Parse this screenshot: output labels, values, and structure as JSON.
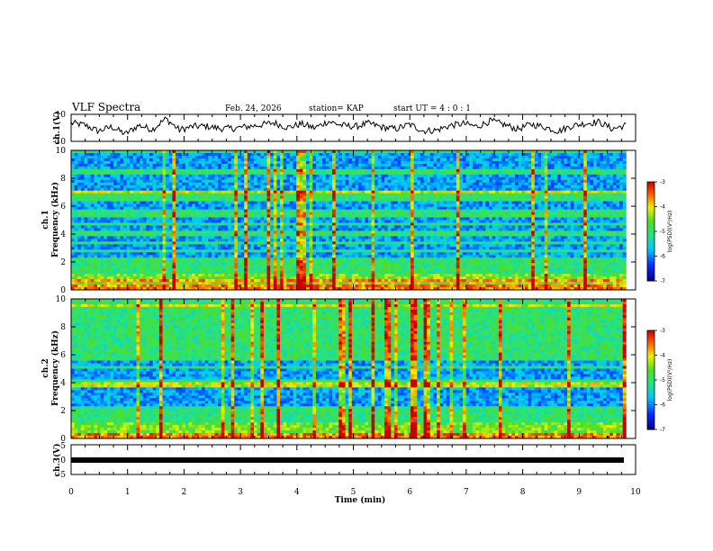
{
  "header": {
    "title": "VLF Spectra",
    "date": "Feb. 24, 2026",
    "station": "station= KAP",
    "start_ut": "start  UT =   4 : 0  : 1"
  },
  "chart_data": [
    {
      "type": "line",
      "panel": "ch1-waveform",
      "ylabel": "ch.1(V)",
      "ylim": [
        -10,
        10
      ],
      "yticks": [
        "10",
        "-10"
      ],
      "xlim": [
        0,
        10
      ],
      "x_end": 9.83,
      "series": [
        {
          "name": "ch.1 voltage",
          "values": [
            3.5,
            2.1,
            -2.4,
            0.8,
            -4.6,
            1.9,
            -1.2,
            6.8,
            -1.5,
            1.0,
            1.2,
            -0.5,
            -0.4,
            0.9,
            2.2,
            3.8,
            0.2,
            2.9,
            -0.1,
            4.8,
            1.8,
            1.0,
            3.3,
            0.4,
            -0.8,
            2.6,
            -2.2,
            -1.8,
            1.7,
            3.1,
            0.9,
            5.2,
            2.4,
            -1.0,
            2.7,
            0.6,
            -2.5,
            1.5,
            3.2,
            4.4,
            -0.8,
            2.0
          ]
        }
      ]
    },
    {
      "type": "heatmap",
      "panel": "ch1-spectrogram",
      "ylabel": "ch.1\nFrequency (kHz)",
      "ylim": [
        0,
        10
      ],
      "xlim": [
        0,
        10
      ],
      "x_end": 9.83,
      "yticks": [
        "0",
        "2",
        "4",
        "6",
        "8",
        "10"
      ],
      "colorbar": {
        "label": "log(PSD)(V²/Hz)",
        "range": [
          -7,
          -3
        ],
        "ticks": [
          "-3",
          "-4",
          "-5",
          "-6",
          "-7"
        ]
      },
      "quiet_bands_khz": [
        [
          2.4,
          3.8
        ],
        [
          4.2,
          5.2
        ],
        [
          5.6,
          6.4
        ],
        [
          7.2,
          8.3
        ],
        [
          8.6,
          9.8
        ]
      ]
    },
    {
      "type": "heatmap",
      "panel": "ch2-spectrogram",
      "ylabel": "ch.2\nFrequency (kHz)",
      "ylim": [
        0,
        10
      ],
      "xlim": [
        0,
        10
      ],
      "x_end": 9.83,
      "yticks": [
        "0",
        "2",
        "4",
        "6",
        "8",
        "10"
      ],
      "colorbar": {
        "label": "log(PSD)(V²/Hz)",
        "range": [
          -7,
          -3
        ],
        "ticks": [
          "-3",
          "-4",
          "-5",
          "-6",
          "-7"
        ]
      },
      "quiet_bands_khz": [
        [
          2.2,
          3.6
        ],
        [
          4.2,
          5.6
        ]
      ]
    },
    {
      "type": "line",
      "panel": "ch3-waveform",
      "ylabel": "ch.3(V)",
      "ylim": [
        -5,
        5
      ],
      "yticks": [
        "5",
        "0",
        "-5"
      ],
      "xlim": [
        0,
        10
      ],
      "x_end": 9.83,
      "series": [
        {
          "name": "ch.3 voltage",
          "values": [
            0,
            0
          ]
        }
      ],
      "xlabel": "Time  (min)",
      "xticks": [
        "0",
        "1",
        "2",
        "3",
        "4",
        "5",
        "6",
        "7",
        "8",
        "9",
        "10"
      ]
    }
  ]
}
